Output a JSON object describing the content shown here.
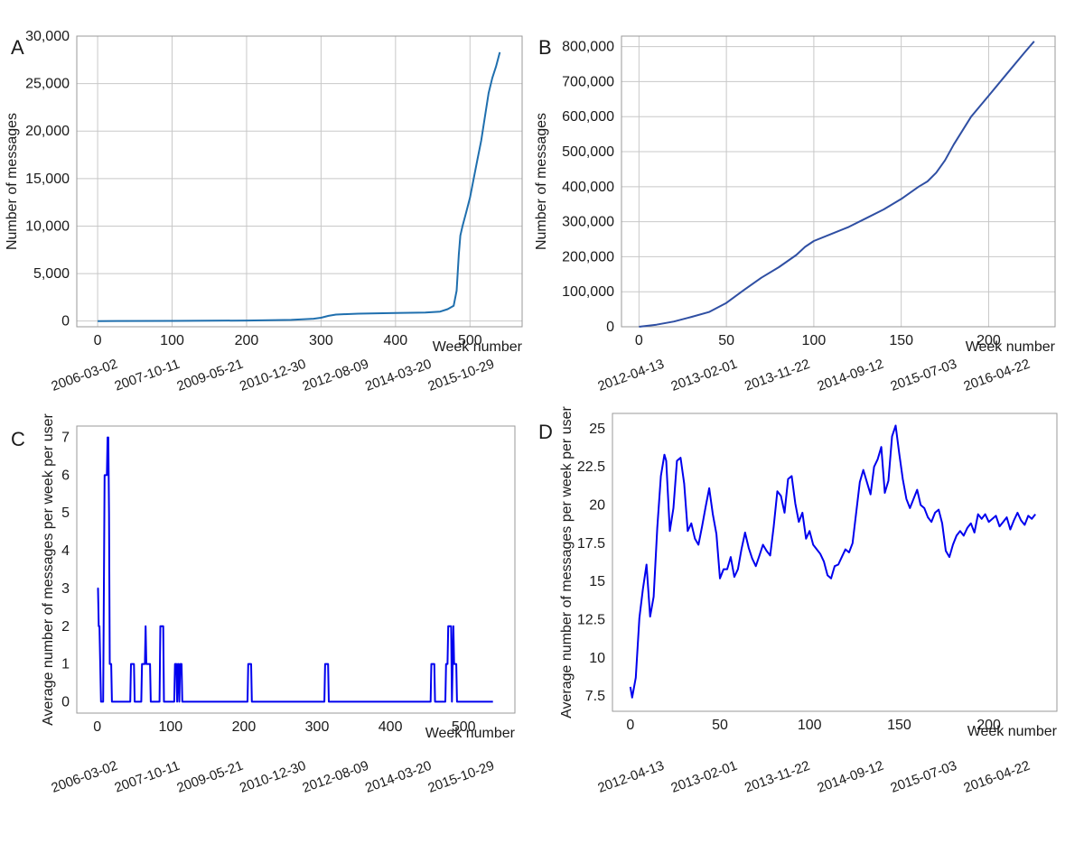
{
  "chart_data": [
    {
      "panel": "A",
      "type": "line",
      "xlabel": "Week number",
      "ylabel": "Number of messages",
      "xlim": [
        -28,
        570
      ],
      "ylim": [
        -600,
        30000
      ],
      "grid": true,
      "x_ticks": [
        0,
        100,
        200,
        300,
        400,
        500
      ],
      "y_ticks": [
        0,
        5000,
        10000,
        15000,
        20000,
        25000,
        30000
      ],
      "y_tick_labels": [
        "0",
        "5,000",
        "10,000",
        "15,000",
        "20,000",
        "25,000",
        "30,000"
      ],
      "date_ticks": [
        "2006-03-02",
        "2007-10-11",
        "2009-05-21",
        "2010-12-30",
        "2012-08-09",
        "2014-03-20",
        "2015-10-29"
      ],
      "line_color": "#1f6fae",
      "series": [
        {
          "x": [
            0,
            100,
            200,
            260,
            290,
            300,
            310,
            320,
            330,
            350,
            400,
            440,
            460,
            470,
            478,
            482,
            485,
            487,
            490,
            495,
            500,
            505,
            510,
            515,
            520,
            525,
            530,
            535,
            540
          ],
          "y": [
            0,
            20,
            60,
            120,
            250,
            350,
            550,
            680,
            720,
            780,
            850,
            900,
            1000,
            1250,
            1600,
            3200,
            7000,
            9000,
            10000,
            11500,
            13000,
            15000,
            17000,
            19000,
            21500,
            24000,
            25600,
            26800,
            28300
          ]
        }
      ]
    },
    {
      "panel": "B",
      "type": "line",
      "xlabel": "Week number",
      "ylabel": "Number of messages",
      "xlim": [
        -10,
        238
      ],
      "ylim": [
        0,
        830000
      ],
      "grid": true,
      "x_ticks": [
        0,
        50,
        100,
        150,
        200
      ],
      "y_ticks": [
        0,
        100000,
        200000,
        300000,
        400000,
        500000,
        600000,
        700000,
        800000
      ],
      "y_tick_labels": [
        "0",
        "100,000",
        "200,000",
        "300,000",
        "400,000",
        "500,000",
        "600,000",
        "700,000",
        "800,000"
      ],
      "date_ticks": [
        "2012-04-13",
        "2013-02-01",
        "2013-11-22",
        "2014-09-12",
        "2015-07-03",
        "2016-04-22"
      ],
      "line_color": "#2f4fa3",
      "series": [
        {
          "x": [
            0,
            10,
            20,
            30,
            40,
            50,
            60,
            70,
            80,
            90,
            95,
            100,
            110,
            120,
            130,
            140,
            150,
            160,
            165,
            170,
            175,
            180,
            190,
            200,
            210,
            220,
            226
          ],
          "y": [
            0,
            6000,
            15000,
            28000,
            42000,
            68000,
            105000,
            140000,
            170000,
            205000,
            228000,
            245000,
            265000,
            285000,
            310000,
            335000,
            365000,
            400000,
            415000,
            440000,
            475000,
            520000,
            600000,
            660000,
            720000,
            780000,
            815000
          ]
        }
      ]
    },
    {
      "panel": "C",
      "type": "line",
      "xlabel": "Week number",
      "ylabel": "Average number of messages per week per user",
      "xlim": [
        -28,
        570
      ],
      "ylim": [
        -0.3,
        7.3
      ],
      "grid": false,
      "x_ticks": [
        0,
        100,
        200,
        300,
        400,
        500
      ],
      "y_ticks": [
        0,
        1,
        2,
        3,
        4,
        5,
        6,
        7
      ],
      "y_tick_labels": [
        "0",
        "1",
        "2",
        "3",
        "4",
        "5",
        "6",
        "7"
      ],
      "date_ticks": [
        "2006-03-02",
        "2007-10-11",
        "2009-05-21",
        "2010-12-30",
        "2012-08-09",
        "2014-03-20",
        "2015-10-29"
      ],
      "line_color": "#0000ee",
      "series": [
        {
          "x": [
            0,
            1,
            2,
            3,
            5,
            6,
            8,
            10,
            11,
            13,
            14,
            15,
            16,
            17,
            18,
            19,
            20,
            22,
            45,
            46,
            50,
            51,
            60,
            61,
            65,
            66,
            67,
            68,
            72,
            73,
            85,
            86,
            90,
            91,
            105,
            106,
            108,
            109,
            110,
            111,
            112,
            113,
            115,
            116,
            205,
            206,
            210,
            211,
            310,
            311,
            315,
            316,
            455,
            456,
            460,
            461,
            475,
            476,
            478,
            479,
            483,
            484,
            486,
            487,
            490,
            491,
            540
          ],
          "y": [
            3,
            3,
            2,
            2,
            0,
            0,
            0,
            6,
            6,
            6,
            7,
            7,
            5,
            1,
            1,
            1,
            0,
            0,
            0,
            1,
            1,
            0,
            0,
            1,
            1,
            2,
            1,
            1,
            1,
            0,
            0,
            2,
            2,
            0,
            0,
            1,
            1,
            0,
            1,
            1,
            0,
            1,
            1,
            0,
            0,
            1,
            1,
            0,
            0,
            1,
            1,
            0,
            0,
            1,
            1,
            0,
            0,
            1,
            1,
            2,
            2,
            0,
            2,
            1,
            1,
            0,
            0
          ]
        }
      ]
    },
    {
      "panel": "D",
      "type": "line",
      "xlabel": "Week number",
      "ylabel": "Average number of messages per week per user",
      "xlim": [
        -10,
        238
      ],
      "ylim": [
        6.5,
        26
      ],
      "grid": false,
      "x_ticks": [
        0,
        50,
        100,
        150,
        200
      ],
      "y_ticks": [
        7.5,
        10,
        12.5,
        15,
        17.5,
        20,
        22.5,
        25
      ],
      "y_tick_labels": [
        "7.5",
        "10",
        "12.5",
        "15",
        "17.5",
        "20",
        "22.5",
        "25"
      ],
      "date_ticks": [
        "2012-04-13",
        "2013-02-01",
        "2013-11-22",
        "2014-09-12",
        "2015-07-03",
        "2016-04-22"
      ],
      "line_color": "#0000ee",
      "series": [
        {
          "x": [
            0,
            1,
            3,
            5,
            7,
            9,
            11,
            13,
            15,
            17,
            19,
            20,
            22,
            24,
            26,
            28,
            30,
            32,
            34,
            36,
            38,
            40,
            42,
            44,
            46,
            48,
            50,
            52,
            54,
            56,
            58,
            60,
            62,
            64,
            66,
            68,
            70,
            72,
            74,
            76,
            78,
            80,
            82,
            84,
            86,
            88,
            90,
            92,
            94,
            96,
            98,
            100,
            102,
            104,
            106,
            108,
            110,
            112,
            114,
            116,
            118,
            120,
            122,
            124,
            126,
            128,
            130,
            132,
            134,
            136,
            138,
            140,
            142,
            144,
            146,
            148,
            150,
            152,
            154,
            156,
            158,
            160,
            162,
            164,
            166,
            168,
            170,
            172,
            174,
            176,
            178,
            180,
            182,
            184,
            186,
            188,
            190,
            192,
            194,
            196,
            198,
            200,
            202,
            204,
            206,
            208,
            210,
            212,
            214,
            216,
            218,
            220,
            222,
            224,
            226
          ],
          "y": [
            8.1,
            7.4,
            8.7,
            12.6,
            14.5,
            16.1,
            12.7,
            14.0,
            18.5,
            21.9,
            23.3,
            22.9,
            18.3,
            19.8,
            22.9,
            23.1,
            21.4,
            18.3,
            18.8,
            17.8,
            17.4,
            18.6,
            19.9,
            21.1,
            19.4,
            18.1,
            15.2,
            15.8,
            15.8,
            16.6,
            15.3,
            15.8,
            17.1,
            18.2,
            17.2,
            16.5,
            16.0,
            16.7,
            17.4,
            17.0,
            16.7,
            18.6,
            20.9,
            20.6,
            19.5,
            21.7,
            21.9,
            20.1,
            18.9,
            19.5,
            17.8,
            18.3,
            17.4,
            17.1,
            16.8,
            16.3,
            15.4,
            15.2,
            16.0,
            16.1,
            16.6,
            17.1,
            16.9,
            17.5,
            19.5,
            21.5,
            22.3,
            21.5,
            20.7,
            22.5,
            23.0,
            23.8,
            20.8,
            21.6,
            24.5,
            25.2,
            23.4,
            21.7,
            20.4,
            19.8,
            20.4,
            21.0,
            20.0,
            19.8,
            19.2,
            18.9,
            19.5,
            19.7,
            18.8,
            17.0,
            16.6,
            17.4,
            18.0,
            18.3,
            18.0,
            18.5,
            18.8,
            18.2,
            19.4,
            19.1,
            19.4,
            18.9,
            19.1,
            19.3,
            18.6,
            18.9,
            19.2,
            18.4,
            19.0,
            19.5,
            19.0,
            18.7,
            19.3,
            19.1,
            19.4
          ]
        }
      ]
    }
  ]
}
